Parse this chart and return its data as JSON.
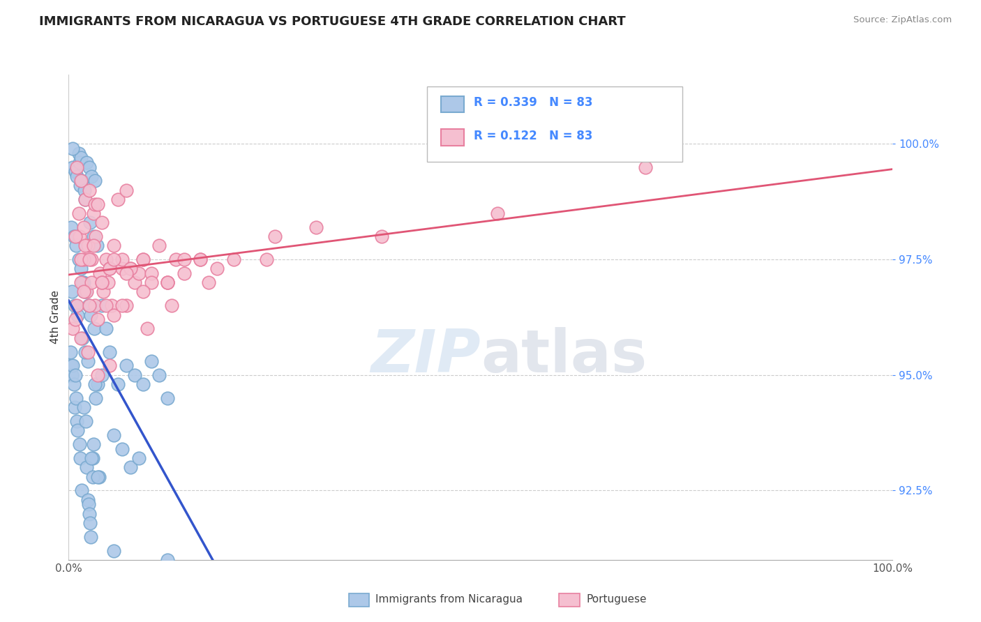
{
  "title": "IMMIGRANTS FROM NICARAGUA VS PORTUGUESE 4TH GRADE CORRELATION CHART",
  "source": "Source: ZipAtlas.com",
  "ylabel": "4th Grade",
  "ylabel_values": [
    92.5,
    95.0,
    97.5,
    100.0
  ],
  "ymin": 91.0,
  "ymax": 101.5,
  "xmin": 0.0,
  "xmax": 100.0,
  "blue_color": "#adc8e8",
  "blue_edge_color": "#7aaad0",
  "pink_color": "#f5bfd0",
  "pink_edge_color": "#e880a0",
  "blue_line_color": "#3355cc",
  "pink_line_color": "#e05575",
  "right_tick_color": "#4488ff",
  "legend_R1": "R = 0.339",
  "legend_N1": "N = 83",
  "legend_R2": "R = 0.122",
  "legend_N2": "N = 83",
  "watermark_zip": "ZIP",
  "watermark_atlas": "atlas",
  "blue_scatter_x": [
    0.3,
    0.4,
    0.5,
    0.6,
    0.7,
    0.8,
    0.9,
    1.0,
    1.1,
    1.2,
    1.3,
    1.4,
    1.5,
    1.6,
    1.7,
    1.8,
    1.9,
    2.0,
    2.1,
    2.2,
    2.3,
    2.4,
    2.5,
    2.6,
    2.7,
    2.8,
    2.9,
    3.0,
    3.1,
    3.2,
    3.3,
    3.4,
    3.5,
    3.7,
    4.0,
    4.5,
    5.0,
    5.5,
    6.0,
    6.5,
    7.0,
    7.5,
    8.0,
    8.5,
    9.0,
    10.0,
    11.0,
    12.0,
    0.2,
    0.3,
    0.4,
    0.5,
    0.6,
    0.7,
    0.8,
    0.9,
    1.0,
    1.1,
    1.2,
    1.3,
    1.4,
    1.5,
    1.6,
    1.7,
    1.8,
    1.9,
    2.0,
    2.1,
    2.2,
    2.3,
    2.4,
    2.5,
    2.6,
    2.7,
    2.8,
    2.9,
    3.0,
    3.2,
    3.5,
    4.0,
    5.5,
    12.0,
    0.5
  ],
  "blue_scatter_y": [
    98.2,
    96.8,
    99.5,
    98.0,
    96.5,
    99.4,
    97.8,
    99.3,
    96.3,
    99.8,
    99.6,
    99.1,
    99.7,
    99.2,
    95.8,
    97.0,
    99.0,
    98.8,
    96.8,
    99.6,
    95.3,
    96.5,
    99.5,
    98.3,
    96.3,
    99.3,
    93.2,
    98.0,
    96.0,
    99.2,
    94.5,
    97.8,
    94.8,
    92.8,
    96.5,
    96.0,
    95.5,
    93.7,
    94.8,
    93.4,
    95.2,
    93.0,
    95.0,
    93.2,
    94.8,
    95.3,
    95.0,
    94.5,
    95.5,
    95.2,
    95.0,
    95.2,
    94.8,
    94.3,
    95.0,
    94.5,
    94.0,
    93.8,
    97.5,
    93.5,
    93.2,
    97.3,
    92.5,
    97.0,
    94.3,
    96.8,
    95.5,
    94.0,
    93.0,
    92.3,
    92.2,
    92.0,
    91.8,
    91.5,
    93.2,
    92.8,
    93.5,
    94.8,
    92.8,
    95.0,
    91.2,
    91.0,
    99.9
  ],
  "pink_scatter_x": [
    1.0,
    1.2,
    1.3,
    1.5,
    1.8,
    2.0,
    2.3,
    2.5,
    2.8,
    3.0,
    3.2,
    3.3,
    3.5,
    3.8,
    4.0,
    4.2,
    4.5,
    4.8,
    5.0,
    5.2,
    5.5,
    6.0,
    6.5,
    7.0,
    7.5,
    8.0,
    8.5,
    9.0,
    10.0,
    11.0,
    12.0,
    13.0,
    14.0,
    16.0,
    17.0,
    18.0,
    20.0,
    24.0,
    25.0,
    30.0,
    38.0,
    52.0,
    70.0,
    1.5,
    1.8,
    2.2,
    2.8,
    3.2,
    4.0,
    5.0,
    6.5,
    7.5,
    9.0,
    10.0,
    12.0,
    14.0,
    0.8,
    1.5,
    2.0,
    2.5,
    3.0,
    4.0,
    5.5,
    7.0,
    9.5,
    12.5,
    1.0,
    1.8,
    2.5,
    3.5,
    4.5,
    5.5,
    7.0,
    9.0,
    12.0,
    16.0,
    0.5,
    0.8,
    1.5,
    2.3,
    3.5,
    5.0,
    6.5
  ],
  "pink_scatter_y": [
    99.5,
    98.5,
    98.0,
    99.2,
    98.2,
    98.8,
    97.8,
    99.0,
    97.5,
    98.5,
    98.7,
    98.0,
    98.7,
    97.2,
    98.3,
    96.8,
    97.5,
    97.0,
    97.3,
    96.5,
    97.8,
    98.8,
    97.3,
    99.0,
    97.3,
    97.0,
    97.2,
    97.5,
    97.2,
    97.8,
    97.0,
    97.5,
    97.5,
    97.5,
    97.0,
    97.3,
    97.5,
    97.5,
    98.0,
    98.2,
    98.0,
    98.5,
    99.5,
    97.0,
    97.5,
    96.8,
    97.0,
    96.5,
    97.0,
    97.3,
    97.5,
    97.3,
    97.5,
    97.0,
    97.0,
    97.2,
    98.0,
    97.5,
    97.8,
    97.5,
    97.8,
    97.0,
    97.5,
    97.2,
    96.0,
    96.5,
    96.5,
    96.8,
    96.5,
    96.2,
    96.5,
    96.3,
    96.5,
    96.8,
    97.0,
    97.5,
    96.0,
    96.2,
    95.8,
    95.5,
    95.0,
    95.2,
    96.5
  ]
}
